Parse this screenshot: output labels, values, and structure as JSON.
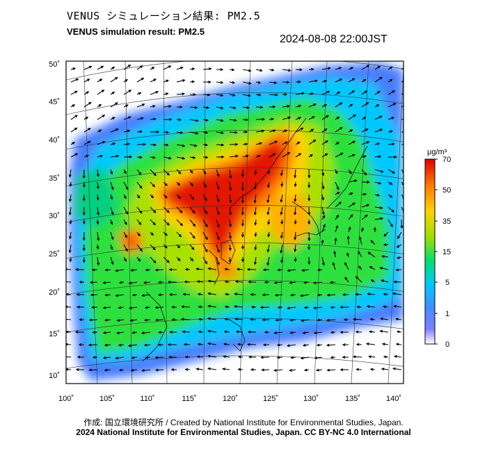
{
  "header": {
    "title_jp": "VENUS シミュレーション結果: PM2.5",
    "title_en": "VENUS simulation result: PM2.5",
    "timestamp": "2024-08-08 22:00JST"
  },
  "map": {
    "lon_ticks": [
      "100˚",
      "105˚",
      "110˚",
      "115˚",
      "120˚",
      "125˚",
      "130˚",
      "135˚",
      "140˚"
    ],
    "lat_ticks": [
      "50˚",
      "45˚",
      "40˚",
      "35˚",
      "30˚",
      "25˚",
      "20˚",
      "15˚",
      "10˚"
    ]
  },
  "colorbar": {
    "unit": "μg/m³",
    "labels": [
      "70",
      "50",
      "35",
      "15",
      "5",
      "1",
      "0"
    ],
    "stops": [
      "#ffffff",
      "#7f7fff",
      "#3f8fff",
      "#00c8ff",
      "#00e070",
      "#9de000",
      "#ffd200",
      "#ff7800",
      "#e00000"
    ]
  },
  "footer": {
    "credit": "作成: 国立環境研究所 / Created by National Institute for Environmental Studies, Japan.",
    "license": "2024 National Institute for Environmental Studies, Japan. CC BY-NC 4.0 International"
  }
}
